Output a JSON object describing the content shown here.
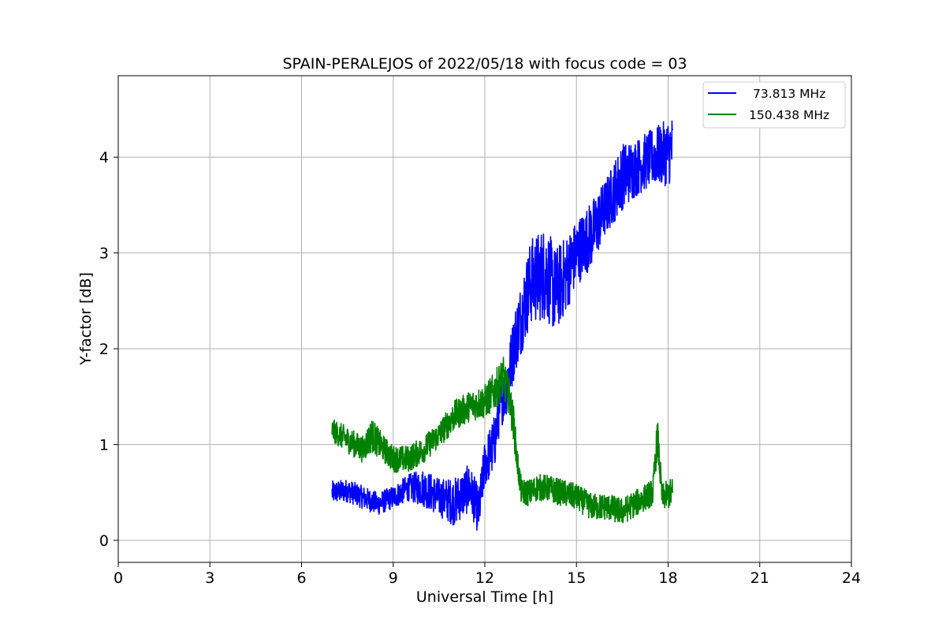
{
  "chart_data": {
    "type": "line",
    "title": "SPAIN-PERALEJOS of 2022/05/18 with focus code = 03",
    "xlabel": "Universal Time [h]",
    "ylabel": "Y-factor [dB]",
    "xlim": [
      0,
      24
    ],
    "ylim": [
      -0.23,
      4.85
    ],
    "xticks": [
      0,
      3,
      6,
      9,
      12,
      15,
      18,
      21,
      24
    ],
    "yticks": [
      0,
      1,
      2,
      3,
      4
    ],
    "grid": true,
    "legend_position": "top-right",
    "series": [
      {
        "name": "73.813 MHz",
        "color": "#0000ff",
        "x": [
          7.0,
          7.5,
          8.0,
          8.5,
          9.0,
          9.5,
          10.0,
          10.5,
          11.0,
          11.5,
          11.8,
          12.0,
          12.3,
          12.5,
          12.7,
          13.0,
          13.5,
          14.0,
          14.3,
          14.7,
          15.0,
          15.5,
          16.0,
          16.5,
          17.0,
          17.5,
          18.0,
          18.15
        ],
        "y": [
          0.5,
          0.52,
          0.45,
          0.38,
          0.45,
          0.55,
          0.55,
          0.45,
          0.4,
          0.55,
          0.3,
          0.8,
          1.0,
          1.4,
          1.6,
          2.1,
          2.7,
          2.8,
          2.6,
          2.8,
          3.0,
          3.2,
          3.5,
          3.8,
          3.9,
          4.0,
          4.05,
          4.1
        ],
        "noise": [
          0.12,
          0.12,
          0.12,
          0.12,
          0.12,
          0.14,
          0.2,
          0.2,
          0.25,
          0.25,
          0.25,
          0.25,
          0.3,
          0.25,
          0.3,
          0.35,
          0.45,
          0.5,
          0.45,
          0.4,
          0.35,
          0.35,
          0.3,
          0.35,
          0.3,
          0.3,
          0.35,
          0.35
        ]
      },
      {
        "name": "150.438 MHz",
        "color": "#008000",
        "x": [
          7.0,
          7.5,
          8.0,
          8.3,
          8.7,
          9.0,
          9.5,
          10.0,
          10.5,
          11.0,
          11.5,
          12.0,
          12.3,
          12.6,
          12.8,
          12.95,
          13.05,
          13.2,
          13.5,
          13.7,
          14.0,
          14.5,
          15.0,
          15.5,
          16.0,
          16.5,
          17.0,
          17.5,
          17.65,
          17.8,
          18.15
        ],
        "y": [
          1.15,
          1.05,
          0.95,
          1.1,
          0.95,
          0.85,
          0.85,
          0.95,
          1.1,
          1.3,
          1.4,
          1.45,
          1.55,
          1.7,
          1.5,
          1.2,
          0.85,
          0.5,
          0.5,
          0.55,
          0.55,
          0.5,
          0.45,
          0.35,
          0.35,
          0.3,
          0.4,
          0.5,
          1.1,
          0.45,
          0.5
        ],
        "noise": [
          0.12,
          0.14,
          0.14,
          0.18,
          0.14,
          0.14,
          0.14,
          0.14,
          0.14,
          0.16,
          0.16,
          0.18,
          0.2,
          0.22,
          0.2,
          0.2,
          0.16,
          0.14,
          0.14,
          0.14,
          0.14,
          0.14,
          0.14,
          0.14,
          0.14,
          0.14,
          0.14,
          0.14,
          0.2,
          0.14,
          0.16
        ]
      }
    ]
  }
}
